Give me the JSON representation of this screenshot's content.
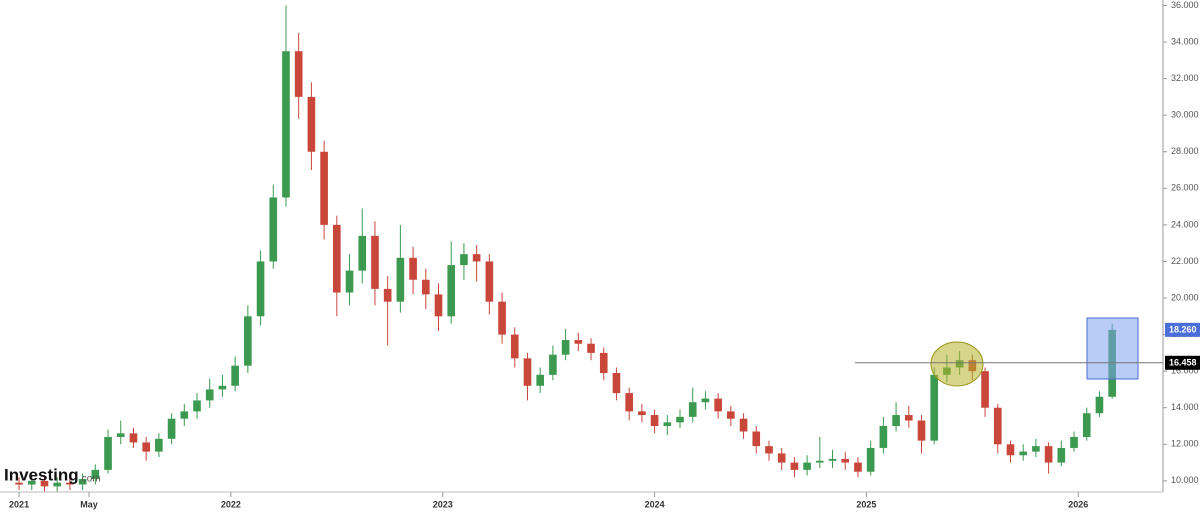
{
  "chart_data": {
    "type": "candlestick",
    "logo": "Investing",
    "logo_suffix": ".com",
    "xlim": [
      2020.91,
      2026.4
    ],
    "xticks": [
      2021,
      {
        "value": 2021.33,
        "label": "May"
      },
      2022,
      2023,
      2024,
      2025,
      2026
    ],
    "ylim": [
      9.5,
      36.3
    ],
    "yticks": [
      {
        "value": 10,
        "label": "10.000"
      },
      {
        "value": 12,
        "label": "12.000"
      },
      {
        "value": 14,
        "label": "14.000"
      },
      {
        "value": 16,
        "label": "16.000"
      },
      {
        "value": 18,
        "label": "18.000"
      },
      {
        "value": 20,
        "label": "20.000"
      },
      {
        "value": 22,
        "label": "22.000"
      },
      {
        "value": 24,
        "label": "24.000"
      },
      {
        "value": 26,
        "label": "26.000"
      },
      {
        "value": 28,
        "label": "28.000"
      },
      {
        "value": 30,
        "label": "30.000"
      },
      {
        "value": 32,
        "label": "32.000"
      },
      {
        "value": 34,
        "label": "34.000"
      },
      {
        "value": 36,
        "label": "36.000"
      }
    ],
    "grid": false,
    "up_color": "#3b9a4f",
    "down_color": "#c8473a",
    "x": [
      2021,
      2021.06,
      2021.12,
      2021.18,
      2021.24,
      2021.3,
      2021.36,
      2021.42,
      2021.48,
      2021.54,
      2021.6,
      2021.66,
      2021.72,
      2021.78,
      2021.84,
      2021.9,
      2021.96,
      2022.02,
      2022.08,
      2022.14,
      2022.2,
      2022.26,
      2022.32,
      2022.38,
      2022.44,
      2022.5,
      2022.56,
      2022.62,
      2022.68,
      2022.74,
      2022.8,
      2022.86,
      2022.92,
      2022.98,
      2023.04,
      2023.1,
      2023.16,
      2023.22,
      2023.28,
      2023.34,
      2023.4,
      2023.46,
      2023.52,
      2023.58,
      2023.64,
      2023.7,
      2023.76,
      2023.82,
      2023.88,
      2023.94,
      2024,
      2024.06,
      2024.12,
      2024.18,
      2024.24,
      2024.3,
      2024.36,
      2024.42,
      2024.48,
      2024.54,
      2024.6,
      2024.66,
      2024.72,
      2024.78,
      2024.84,
      2024.9,
      2024.96,
      2025.02,
      2025.08,
      2025.14,
      2025.2,
      2025.26,
      2025.32,
      2025.38,
      2025.44,
      2025.5,
      2025.56,
      2025.62,
      2025.68,
      2025.74,
      2025.8,
      2025.86,
      2025.92,
      2025.98,
      2026.04,
      2026.1,
      2026.16
    ],
    "open": [
      9.9,
      9.8,
      10.0,
      9.7,
      9.9,
      9.8,
      10.1,
      10.6,
      12.4,
      12.6,
      12.1,
      11.6,
      12.3,
      13.4,
      13.8,
      14.4,
      15.0,
      15.2,
      16.3,
      19.0,
      22.0,
      25.5,
      33.5,
      31.0,
      28.0,
      24.0,
      20.3,
      21.5,
      23.4,
      20.5,
      19.8,
      22.2,
      21.0,
      20.2,
      19.0,
      21.8,
      22.4,
      22.0,
      19.8,
      18.0,
      16.7,
      15.2,
      15.8,
      16.9,
      17.7,
      17.5,
      17.0,
      15.9,
      14.8,
      13.8,
      13.6,
      13.0,
      13.2,
      13.5,
      14.3,
      14.5,
      13.8,
      13.4,
      12.7,
      11.9,
      11.5,
      11.0,
      10.6,
      11.0,
      11.1,
      11.2,
      11.0,
      10.5,
      11.8,
      13.0,
      13.6,
      13.3,
      12.2,
      15.8,
      16.2,
      16.6,
      16.0,
      14.0,
      12.0,
      11.4,
      11.6,
      11.9,
      11.0,
      11.8,
      12.4,
      13.7,
      14.6
    ],
    "high": [
      10.2,
      10.3,
      10.3,
      10.2,
      10.2,
      10.4,
      10.9,
      12.8,
      13.3,
      12.9,
      12.4,
      12.6,
      13.7,
      14.2,
      14.8,
      15.6,
      15.8,
      16.8,
      19.6,
      22.6,
      26.2,
      36.0,
      34.5,
      31.8,
      28.6,
      24.5,
      22.4,
      24.9,
      24.2,
      21.2,
      24.0,
      22.8,
      21.6,
      20.8,
      23.1,
      23.0,
      22.9,
      22.4,
      20.3,
      18.4,
      17.0,
      16.2,
      17.4,
      18.3,
      18.1,
      17.8,
      17.3,
      16.2,
      15.1,
      14.2,
      13.9,
      13.6,
      13.9,
      15.1,
      14.9,
      14.8,
      14.1,
      13.7,
      13.0,
      12.2,
      11.8,
      11.3,
      11.4,
      12.4,
      11.7,
      11.6,
      11.3,
      12.2,
      13.5,
      14.3,
      14.1,
      13.6,
      16.2,
      16.9,
      17.1,
      16.9,
      16.2,
      14.2,
      12.2,
      12.0,
      12.3,
      12.1,
      12.2,
      12.7,
      14.0,
      14.9,
      18.6
    ],
    "low": [
      9.5,
      9.5,
      9.4,
      9.4,
      9.5,
      9.5,
      9.8,
      10.4,
      12.0,
      11.8,
      11.1,
      11.3,
      12.0,
      13.0,
      13.4,
      14.0,
      14.6,
      14.9,
      15.9,
      18.5,
      21.6,
      25.0,
      29.8,
      27.0,
      23.2,
      19.0,
      19.6,
      20.8,
      19.6,
      17.4,
      19.2,
      20.2,
      19.4,
      18.2,
      18.6,
      21.0,
      20.9,
      19.1,
      17.5,
      16.2,
      14.4,
      14.8,
      15.5,
      16.6,
      17.1,
      16.6,
      15.5,
      14.4,
      13.3,
      13.2,
      12.6,
      12.5,
      12.9,
      13.2,
      13.9,
      13.4,
      13.0,
      12.3,
      11.5,
      11.1,
      10.6,
      10.2,
      10.3,
      10.7,
      10.7,
      10.6,
      10.2,
      10.3,
      11.5,
      12.7,
      12.9,
      11.5,
      12.0,
      15.4,
      15.8,
      15.5,
      13.5,
      11.5,
      11.0,
      11.1,
      11.3,
      10.4,
      10.8,
      11.6,
      12.2,
      13.5,
      14.5
    ],
    "close": [
      9.8,
      10.0,
      9.7,
      9.9,
      9.8,
      10.1,
      10.6,
      12.4,
      12.6,
      12.1,
      11.6,
      12.3,
      13.4,
      13.8,
      14.4,
      15.0,
      15.2,
      16.3,
      19.0,
      22.0,
      25.5,
      33.5,
      31.0,
      28.0,
      24.0,
      20.3,
      21.5,
      23.4,
      20.5,
      19.8,
      22.2,
      21.0,
      20.2,
      19.0,
      21.8,
      22.4,
      22.0,
      19.8,
      18.0,
      16.7,
      15.2,
      15.8,
      16.9,
      17.7,
      17.5,
      17.0,
      15.9,
      14.8,
      13.8,
      13.6,
      13.0,
      13.2,
      13.5,
      14.3,
      14.5,
      13.8,
      13.4,
      12.7,
      11.9,
      11.5,
      11.0,
      10.6,
      11.0,
      11.1,
      11.2,
      11.0,
      10.5,
      11.8,
      13.0,
      13.6,
      13.3,
      12.2,
      15.8,
      16.2,
      16.6,
      16.0,
      14.0,
      12.0,
      11.4,
      11.6,
      11.9,
      11.0,
      11.8,
      12.4,
      13.7,
      14.6,
      18.26
    ],
    "markers": [
      {
        "value": 18.26,
        "label": "18.260",
        "color": "#4a6fd8"
      },
      {
        "value": 16.458,
        "label": "16.458",
        "color": "#000000"
      }
    ]
  }
}
